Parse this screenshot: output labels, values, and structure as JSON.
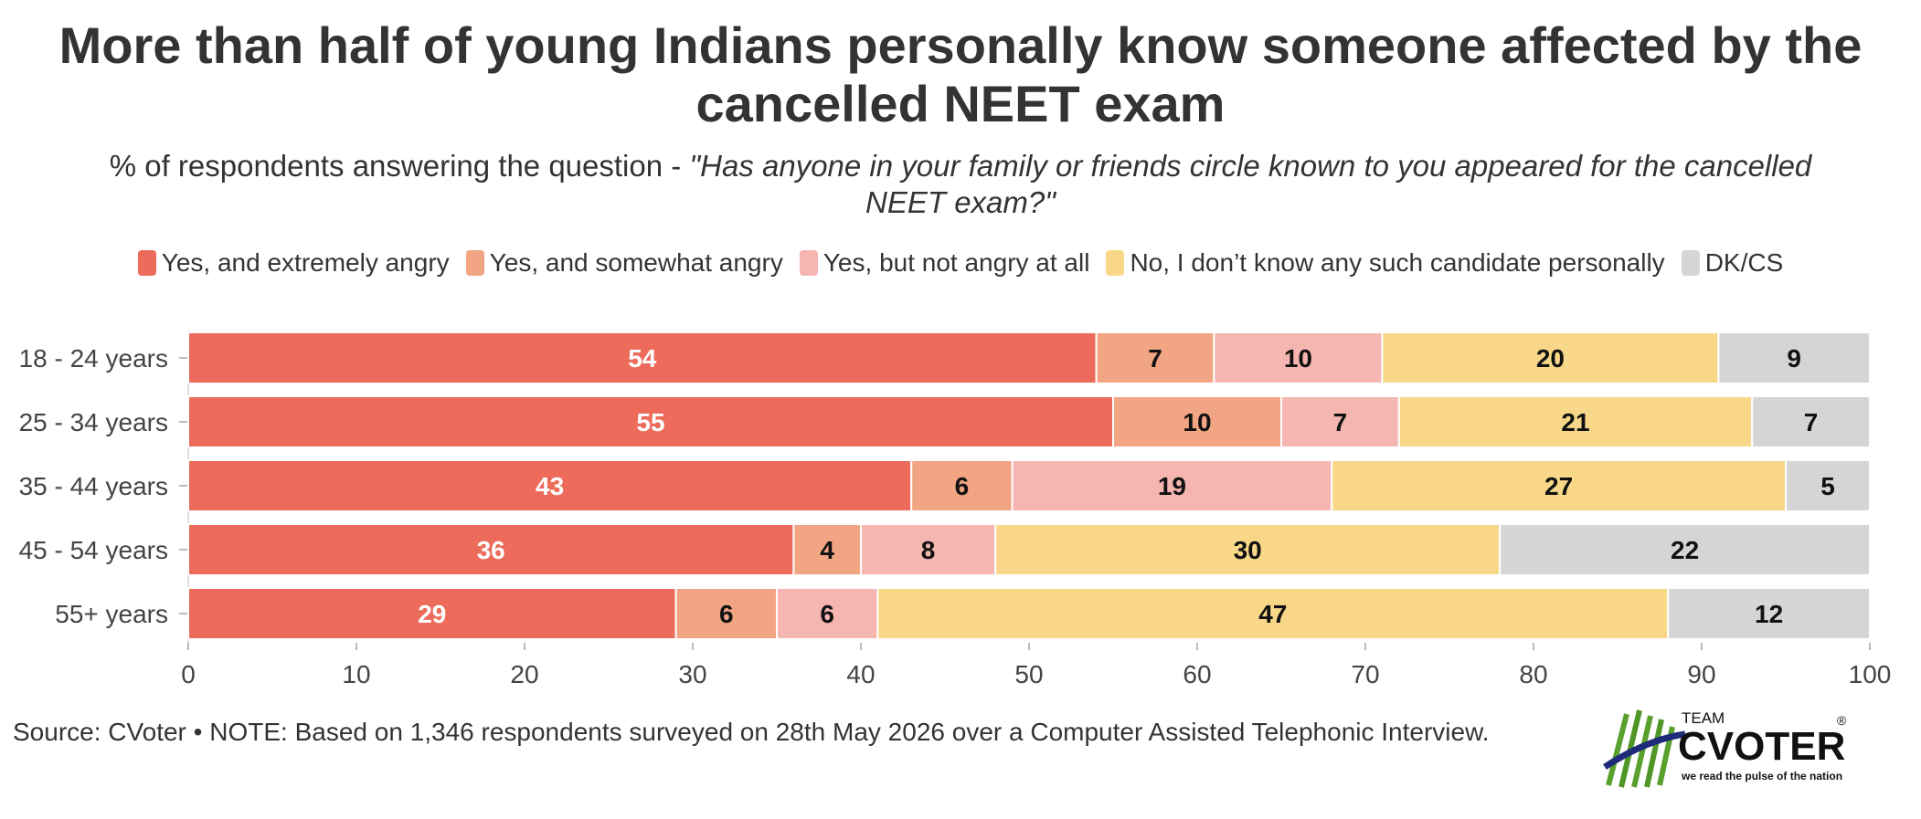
{
  "title_line1": "More than half of young Indians personally know someone affected by the",
  "title_line2": "cancelled NEET exam",
  "subtitle_prefix": "% of respondents answering the question - ",
  "subtitle_question_line1": "\"Has anyone in your family or friends circle known to you appeared for the cancelled",
  "subtitle_question_line2": "NEET exam?\"",
  "source": "Source: CVoter • NOTE: Based on 1,346 respondents surveyed on 28th May 2026 over a Computer Assisted Telephonic Interview.",
  "logo": {
    "top_text": "TEAM",
    "brand": "CVOTER",
    "registered": "®",
    "tagline": "we read the pulse of the nation"
  },
  "chart_data": {
    "type": "bar",
    "orientation": "horizontal",
    "stacked": true,
    "categories": [
      "18 - 24 years",
      "25 - 34 years",
      "35 - 44 years",
      "45 - 54 years",
      "55+ years"
    ],
    "series": [
      {
        "name": "Yes, and extremely angry",
        "color": "#EC6B5A",
        "label_color": "#ffffff",
        "values": [
          54,
          55,
          43,
          36,
          29
        ]
      },
      {
        "name": "Yes, and somewhat angry",
        "color": "#F2A582",
        "label_color": "#111111",
        "values": [
          7,
          10,
          6,
          4,
          6
        ]
      },
      {
        "name": "Yes, but not angry at all",
        "color": "#F5B5B0",
        "label_color": "#111111",
        "values": [
          10,
          7,
          19,
          8,
          6
        ]
      },
      {
        "name": "No, I don’t know any such candidate personally",
        "color": "#F8D888",
        "label_color": "#111111",
        "values": [
          20,
          21,
          27,
          30,
          47
        ]
      },
      {
        "name": "DK/CS",
        "color": "#D5D5D5",
        "label_color": "#111111",
        "values": [
          9,
          7,
          5,
          22,
          12
        ]
      }
    ],
    "xlim": [
      0,
      100
    ],
    "xticks": [
      0,
      10,
      20,
      30,
      40,
      50,
      60,
      70,
      80,
      90,
      100
    ],
    "legend_position": "top",
    "grid": false
  }
}
